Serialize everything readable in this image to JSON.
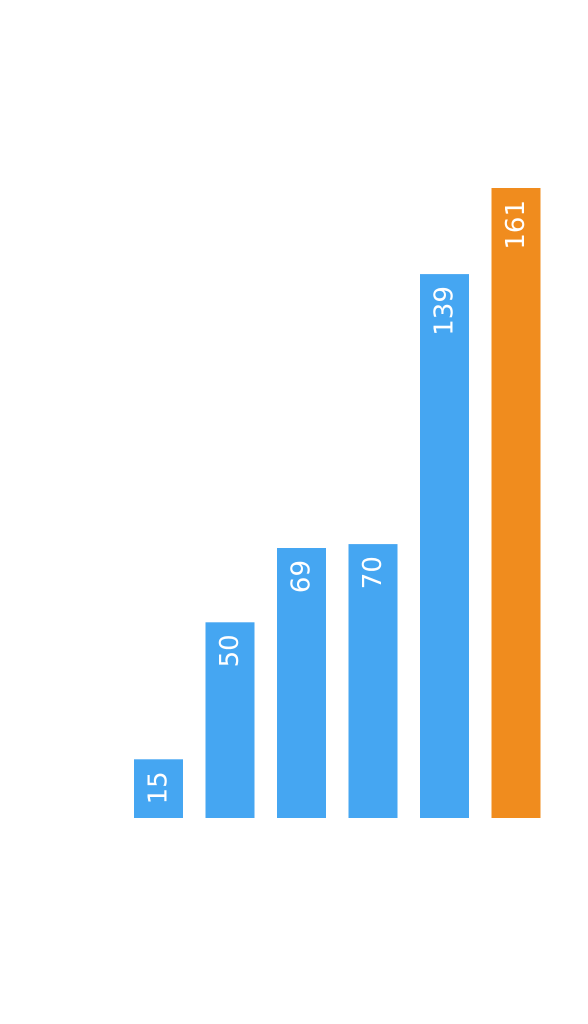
{
  "chart_data": {
    "type": "bar",
    "orientation": "vertical",
    "values": [
      15,
      50,
      69,
      70,
      139,
      161
    ],
    "labels": [
      "15",
      "50",
      "69",
      "70",
      "139",
      "161"
    ],
    "bar_colors": [
      "#45a6f2",
      "#45a6f2",
      "#45a6f2",
      "#45a6f2",
      "#45a6f2",
      "#f08c1e"
    ],
    "label_color": "#ffffff",
    "label_rotation": "-90deg",
    "axes_visible": false,
    "grid": false,
    "ylim": [
      0,
      161
    ]
  },
  "colors": {
    "background": "#ffffff",
    "primary_bar": "#45a6f2",
    "highlight_bar": "#f08c1e"
  }
}
